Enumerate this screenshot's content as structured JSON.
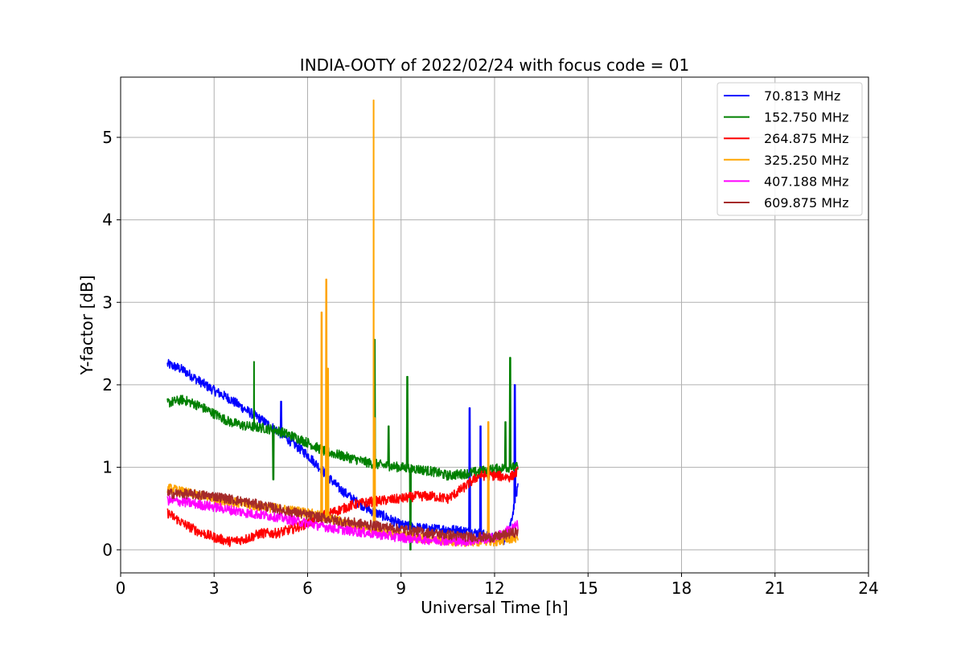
{
  "chart_data": {
    "type": "line",
    "title": "INDIA-OOTY of 2022/02/24 with focus code = 01",
    "xlabel": "Universal Time [h]",
    "ylabel": "Y-factor [dB]",
    "xlim": [
      0,
      24
    ],
    "ylim": [
      -0.28,
      5.73
    ],
    "xticks": [
      0,
      3,
      6,
      9,
      12,
      15,
      18,
      21,
      24
    ],
    "yticks": [
      0,
      1,
      2,
      3,
      4,
      5
    ],
    "grid": true,
    "legend_position": "top-right",
    "series": [
      {
        "name": "70.813 MHz",
        "color": "#0000ff",
        "x": [
          1.5,
          1.75,
          2.0,
          2.5,
          3.0,
          3.5,
          4.0,
          4.5,
          5.0,
          5.5,
          6.0,
          6.5,
          7.0,
          7.5,
          8.0,
          8.5,
          9.0,
          9.5,
          10.0,
          10.5,
          11.0,
          11.5,
          12.0,
          12.3,
          12.5,
          12.75
        ],
        "y": [
          2.25,
          2.22,
          2.18,
          2.05,
          1.93,
          1.83,
          1.7,
          1.58,
          1.45,
          1.3,
          1.15,
          0.95,
          0.75,
          0.6,
          0.48,
          0.4,
          0.3,
          0.27,
          0.25,
          0.25,
          0.23,
          0.2,
          0.15,
          0.12,
          0.3,
          0.75
        ],
        "spikes": [
          [
            5.15,
            1.8
          ],
          [
            11.2,
            1.72
          ],
          [
            11.55,
            1.5
          ],
          [
            12.65,
            2.0
          ]
        ]
      },
      {
        "name": "152.750 MHz",
        "color": "#008000",
        "x": [
          1.5,
          2.0,
          2.5,
          3.0,
          3.5,
          4.0,
          4.5,
          5.0,
          5.5,
          6.0,
          6.5,
          7.0,
          7.5,
          8.0,
          8.5,
          9.0,
          9.5,
          10.0,
          10.5,
          11.0,
          11.5,
          12.0,
          12.5,
          12.75
        ],
        "y": [
          1.78,
          1.82,
          1.75,
          1.65,
          1.55,
          1.5,
          1.48,
          1.45,
          1.38,
          1.3,
          1.2,
          1.15,
          1.1,
          1.05,
          1.02,
          1.0,
          0.98,
          0.95,
          0.9,
          0.92,
          0.95,
          0.98,
          1.0,
          1.0
        ],
        "spikes": [
          [
            4.28,
            2.28
          ],
          [
            4.9,
            0.85
          ],
          [
            8.15,
            2.55
          ],
          [
            8.6,
            1.5
          ],
          [
            9.2,
            2.1
          ],
          [
            9.3,
            0.0
          ],
          [
            12.35,
            1.55
          ],
          [
            12.5,
            2.33
          ]
        ]
      },
      {
        "name": "264.875 MHz",
        "color": "#ff0000",
        "x": [
          1.5,
          2.0,
          2.5,
          3.0,
          3.5,
          4.0,
          4.5,
          5.0,
          5.5,
          6.0,
          6.5,
          7.0,
          7.5,
          8.0,
          8.5,
          9.0,
          9.5,
          10.0,
          10.5,
          11.0,
          11.5,
          12.0,
          12.5,
          12.75
        ],
        "y": [
          0.45,
          0.32,
          0.22,
          0.15,
          0.1,
          0.13,
          0.2,
          0.2,
          0.25,
          0.32,
          0.42,
          0.48,
          0.55,
          0.58,
          0.6,
          0.62,
          0.65,
          0.65,
          0.62,
          0.75,
          0.9,
          0.9,
          0.88,
          0.95
        ],
        "spikes": []
      },
      {
        "name": "325.250 MHz",
        "color": "#ffa500",
        "x": [
          1.5,
          2.0,
          3.0,
          4.0,
          5.0,
          6.0,
          7.0,
          8.0,
          9.0,
          10.0,
          11.0,
          12.0,
          12.75
        ],
        "y": [
          0.75,
          0.7,
          0.62,
          0.55,
          0.5,
          0.45,
          0.35,
          0.25,
          0.18,
          0.12,
          0.1,
          0.1,
          0.15
        ],
        "spikes": [
          [
            6.45,
            2.88
          ],
          [
            6.6,
            3.28
          ],
          [
            6.65,
            2.2
          ],
          [
            8.12,
            5.45
          ],
          [
            8.15,
            1.6
          ],
          [
            11.8,
            1.55
          ]
        ]
      },
      {
        "name": "407.188 MHz",
        "color": "#ff00ff",
        "x": [
          1.5,
          2.0,
          3.0,
          4.0,
          5.0,
          6.0,
          7.0,
          8.0,
          9.0,
          10.0,
          11.0,
          12.0,
          12.75
        ],
        "y": [
          0.6,
          0.58,
          0.52,
          0.45,
          0.4,
          0.32,
          0.25,
          0.2,
          0.15,
          0.12,
          0.1,
          0.15,
          0.3
        ],
        "spikes": []
      },
      {
        "name": "609.875 MHz",
        "color": "#a52a2a",
        "x": [
          1.5,
          2.0,
          3.0,
          4.0,
          5.0,
          6.0,
          7.0,
          8.0,
          9.0,
          10.0,
          11.0,
          12.0,
          12.75
        ],
        "y": [
          0.68,
          0.68,
          0.65,
          0.58,
          0.5,
          0.42,
          0.35,
          0.3,
          0.25,
          0.2,
          0.16,
          0.15,
          0.22
        ],
        "spikes": []
      }
    ]
  }
}
